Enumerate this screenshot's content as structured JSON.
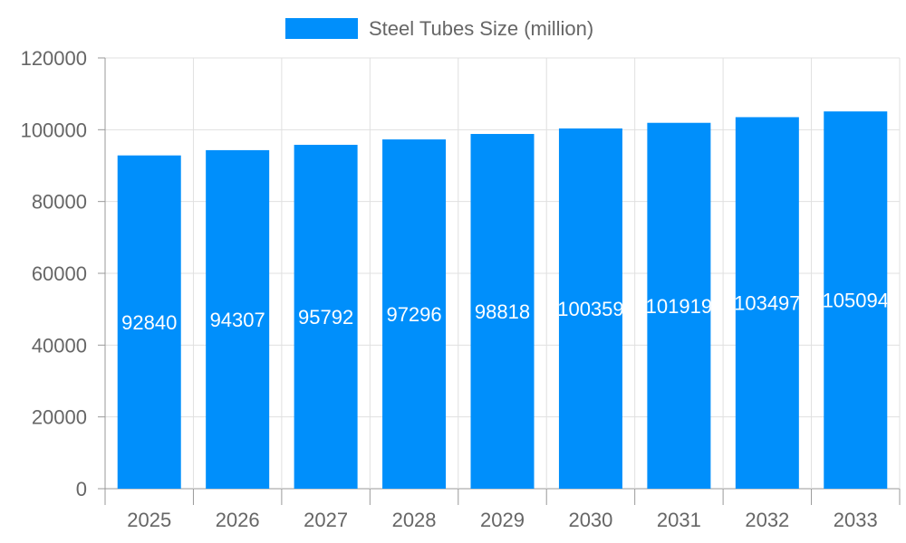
{
  "chart_data": {
    "type": "bar",
    "categories": [
      "2025",
      "2026",
      "2027",
      "2028",
      "2029",
      "2030",
      "2031",
      "2032",
      "2033"
    ],
    "series": [
      {
        "name": "Steel Tubes Size (million)",
        "values": [
          92840,
          94307,
          95792,
          97296,
          98818,
          100359,
          101919,
          103497,
          105094
        ]
      }
    ],
    "ylim": [
      0,
      120000
    ],
    "yticks": [
      0,
      20000,
      40000,
      60000,
      80000,
      100000,
      120000
    ],
    "grid": true,
    "legend": "top",
    "data_labels": true,
    "colors": {
      "bar": "#008ffb",
      "grid": "#e0e0e0",
      "axis": "#999999",
      "text": "#666666",
      "label": "#ffffff"
    }
  }
}
